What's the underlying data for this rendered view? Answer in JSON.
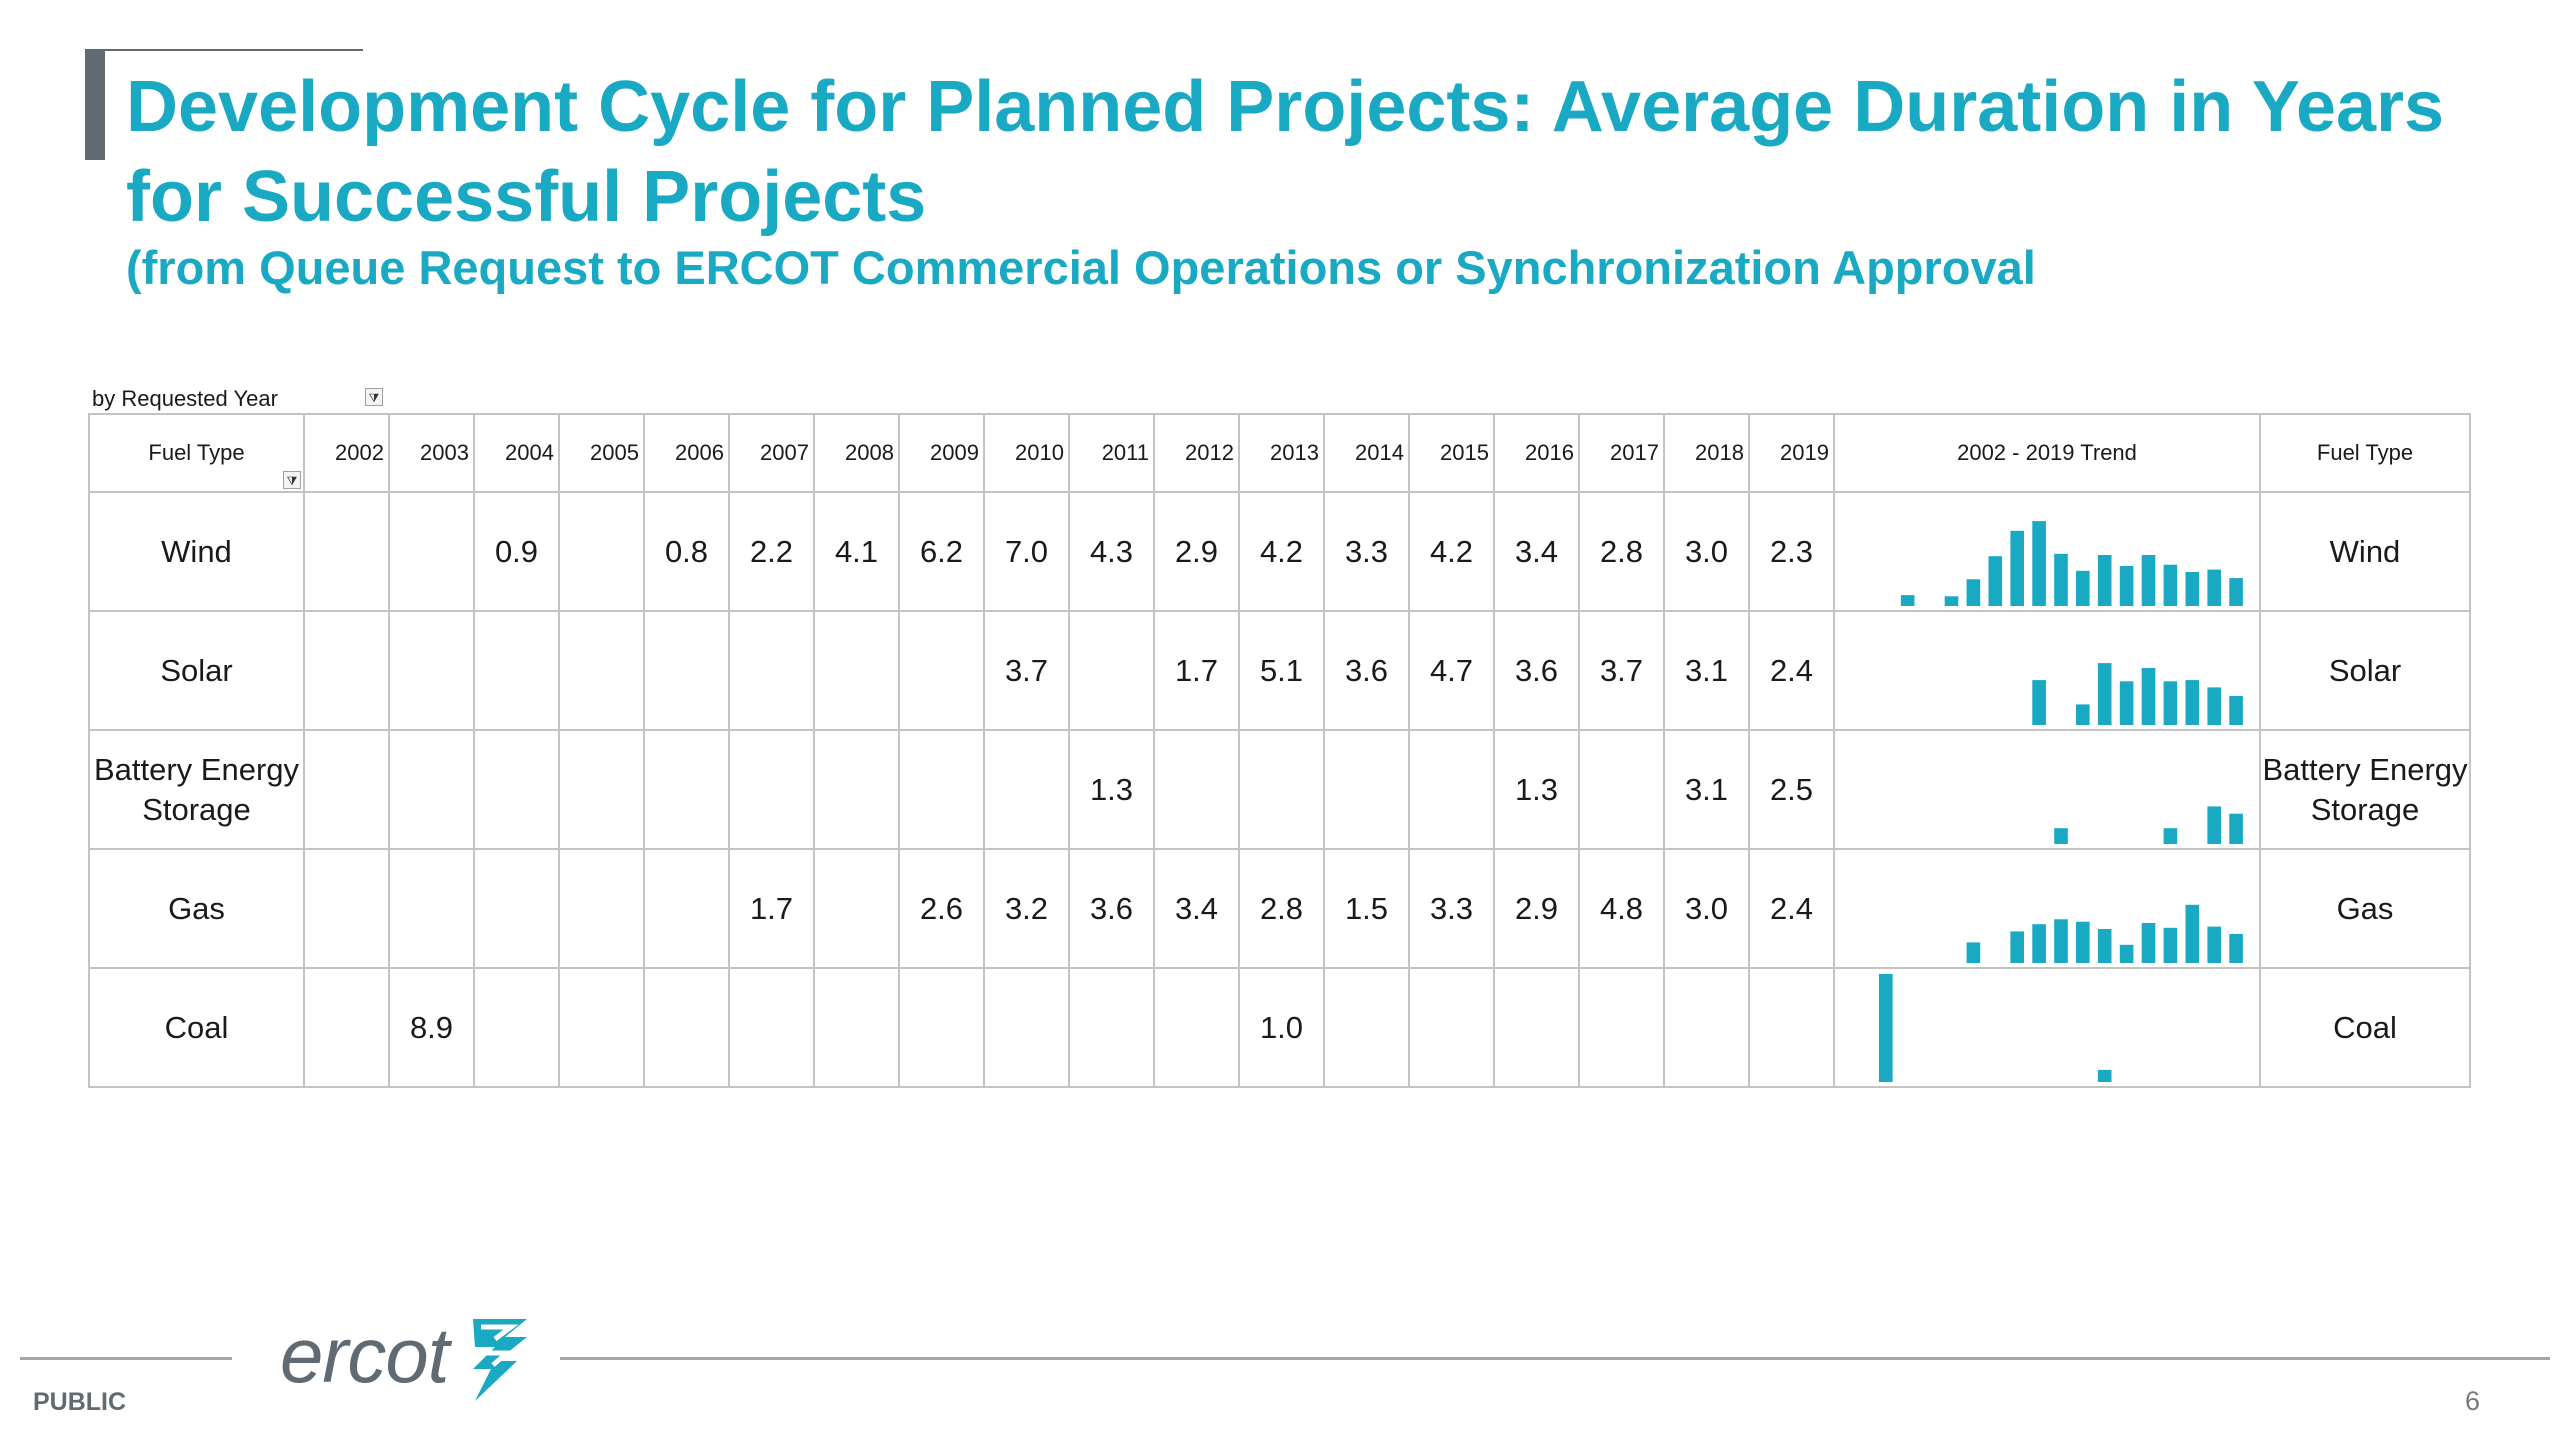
{
  "header": {
    "title": "Development Cycle for Planned Projects: Average Duration in Years for Successful Projects",
    "subtitle": "(from Queue Request to ERCOT Commercial Operations or Synchronization Approval"
  },
  "table": {
    "caption": "by Requested Year",
    "fuel_type_header": "Fuel Type",
    "years": [
      "2002",
      "2003",
      "2004",
      "2005",
      "2006",
      "2007",
      "2008",
      "2009",
      "2010",
      "2011",
      "2012",
      "2013",
      "2014",
      "2015",
      "2016",
      "2017",
      "2018",
      "2019"
    ],
    "trend_header": "2002 - 2019 Trend",
    "fuel_type_header_right": "Fuel Type",
    "filter_icon": "filter-dropdown-icon",
    "rows": [
      {
        "fuel": "Wind",
        "values": [
          "",
          "",
          "0.9",
          "",
          "0.8",
          "2.2",
          "4.1",
          "6.2",
          "7.0",
          "4.3",
          "2.9",
          "4.2",
          "3.3",
          "4.2",
          "3.4",
          "2.8",
          "3.0",
          "2.3"
        ]
      },
      {
        "fuel": "Solar",
        "values": [
          "",
          "",
          "",
          "",
          "",
          "",
          "",
          "",
          "3.7",
          "",
          "1.7",
          "5.1",
          "3.6",
          "4.7",
          "3.6",
          "3.7",
          "3.1",
          "2.4"
        ]
      },
      {
        "fuel": "Battery Energy Storage",
        "values": [
          "",
          "",
          "",
          "",
          "",
          "",
          "",
          "",
          "",
          "1.3",
          "",
          "",
          "",
          "",
          "1.3",
          "",
          "3.1",
          "2.5"
        ]
      },
      {
        "fuel": "Gas",
        "values": [
          "",
          "",
          "",
          "",
          "",
          "1.7",
          "",
          "2.6",
          "3.2",
          "3.6",
          "3.4",
          "2.8",
          "1.5",
          "3.3",
          "2.9",
          "4.8",
          "3.0",
          "2.4"
        ]
      },
      {
        "fuel": "Coal",
        "values": [
          "",
          "8.9",
          "",
          "",
          "",
          "",
          "",
          "",
          "",
          "",
          "",
          "1.0",
          "",
          "",
          "",
          "",
          "",
          ""
        ]
      }
    ]
  },
  "chart_data": {
    "type": "bar",
    "categories": [
      "2002",
      "2003",
      "2004",
      "2005",
      "2006",
      "2007",
      "2008",
      "2009",
      "2010",
      "2011",
      "2012",
      "2013",
      "2014",
      "2015",
      "2016",
      "2017",
      "2018",
      "2019"
    ],
    "series": [
      {
        "name": "Wind",
        "values": [
          null,
          null,
          0.9,
          null,
          0.8,
          2.2,
          4.1,
          6.2,
          7.0,
          4.3,
          2.9,
          4.2,
          3.3,
          4.2,
          3.4,
          2.8,
          3.0,
          2.3
        ]
      },
      {
        "name": "Solar",
        "values": [
          null,
          null,
          null,
          null,
          null,
          null,
          null,
          null,
          3.7,
          null,
          1.7,
          5.1,
          3.6,
          4.7,
          3.6,
          3.7,
          3.1,
          2.4
        ]
      },
      {
        "name": "Battery Energy Storage",
        "values": [
          null,
          null,
          null,
          null,
          null,
          null,
          null,
          null,
          null,
          1.3,
          null,
          null,
          null,
          null,
          1.3,
          null,
          3.1,
          2.5
        ]
      },
      {
        "name": "Gas",
        "values": [
          null,
          null,
          null,
          null,
          null,
          1.7,
          null,
          2.6,
          3.2,
          3.6,
          3.4,
          2.8,
          1.5,
          3.3,
          2.9,
          4.8,
          3.0,
          2.4
        ]
      },
      {
        "name": "Coal",
        "values": [
          null,
          8.9,
          null,
          null,
          null,
          null,
          null,
          null,
          null,
          null,
          null,
          1.0,
          null,
          null,
          null,
          null,
          null,
          null
        ]
      }
    ],
    "bar_color": "#19a9c2",
    "grid": false
  },
  "footer": {
    "logo_text": "ercot",
    "logo_icon": "ercot-lightning-logo-icon",
    "public_label": "PUBLIC",
    "page_number": "6"
  },
  "colors": {
    "accent": "#19a9c2",
    "accent_bar": "#5f6a72",
    "grid_border": "#c3c3c3",
    "footer_gray": "#a6a6a6"
  }
}
